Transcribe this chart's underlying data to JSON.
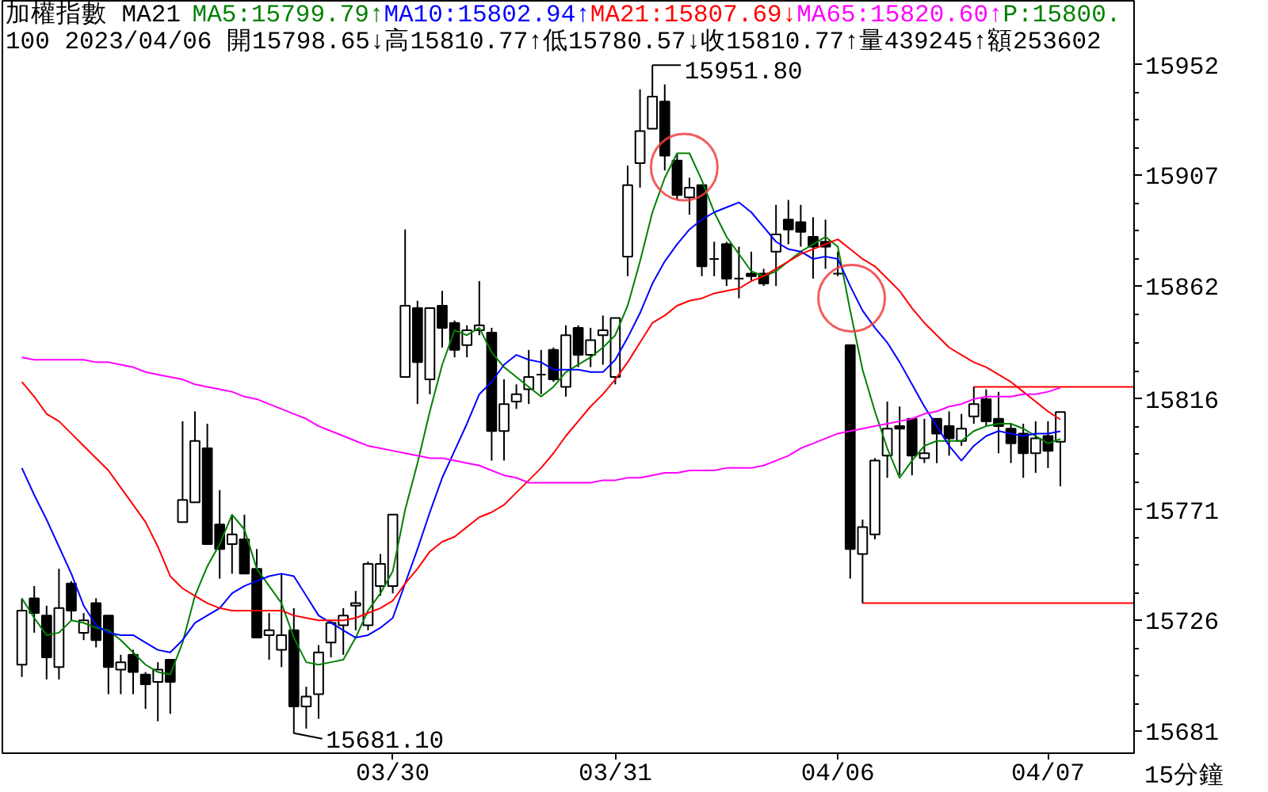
{
  "chart_data": {
    "type": "candlestick",
    "title": "加權指數 MA21",
    "subtitle": "100 2023/04/06 開15798.65↓高15810.77↑低15780.57↓收15810.77↑量439245↑額253602",
    "xlabel": "15分鐘",
    "categories": [
      null,
      null,
      null,
      null,
      null,
      null,
      null,
      null,
      null,
      null,
      null,
      null,
      null,
      null,
      null,
      null,
      null,
      null,
      null,
      null,
      null,
      null,
      null,
      null,
      null,
      null,
      null,
      null,
      null,
      null,
      "03/30",
      null,
      null,
      null,
      null,
      null,
      null,
      null,
      null,
      null,
      null,
      null,
      null,
      null,
      null,
      null,
      null,
      null,
      "03/31",
      null,
      null,
      null,
      null,
      null,
      null,
      null,
      null,
      null,
      null,
      null,
      null,
      null,
      null,
      null,
      null,
      null,
      "04/06",
      null,
      null,
      null,
      null,
      null,
      null,
      null,
      null,
      null,
      null,
      null,
      null,
      null,
      null,
      null,
      null,
      "04/07",
      null
    ],
    "ohlc": [
      [
        15708,
        15735,
        15703,
        15730
      ],
      [
        15735,
        15740,
        15721,
        15729
      ],
      [
        15728,
        15732,
        15702,
        15711
      ],
      [
        15707,
        15747,
        15702,
        15731
      ],
      [
        15741,
        15742,
        15726,
        15730
      ],
      [
        15721,
        15729,
        15718,
        15726
      ],
      [
        15733,
        15735,
        15715,
        15718
      ],
      [
        15728,
        15728,
        15696,
        15707
      ],
      [
        15706,
        15712,
        15696,
        15709
      ],
      [
        15712,
        15714,
        15696,
        15705
      ],
      [
        15704,
        15705,
        15690,
        15700
      ],
      [
        15701,
        15709,
        15685,
        15706
      ],
      [
        15710,
        15710,
        15688,
        15701
      ],
      [
        15766,
        15807,
        15766,
        15775
      ],
      [
        15774,
        15811,
        15774,
        15799
      ],
      [
        15796,
        15806,
        15757,
        15757
      ],
      [
        15765,
        15779,
        15743,
        15755
      ],
      [
        15757,
        15769,
        15745,
        15761
      ],
      [
        15759,
        15769,
        15745,
        15745
      ],
      [
        15747,
        15755,
        15719,
        15719
      ],
      [
        15720,
        15729,
        15710,
        15722
      ],
      [
        15714,
        15745,
        15707,
        15720
      ],
      [
        15722,
        15731,
        15681.1,
        15691
      ],
      [
        15691,
        15699,
        15682,
        15695
      ],
      [
        15696,
        15716,
        15686,
        15713
      ],
      [
        15717,
        15726,
        15711,
        15725
      ],
      [
        15724,
        15731,
        15712,
        15728
      ],
      [
        15732,
        15738,
        15722,
        15733
      ],
      [
        15724,
        15750,
        15722,
        15749
      ],
      [
        15740,
        15753,
        15736,
        15749
      ],
      [
        15740,
        15769,
        15737,
        15769
      ],
      [
        15825,
        15885,
        15825,
        15854
      ],
      [
        15853,
        15856,
        15814,
        15831
      ],
      [
        15824,
        15853,
        15818,
        15853
      ],
      [
        15854,
        15860,
        15837,
        15845
      ],
      [
        15847,
        15848,
        15833,
        15836
      ],
      [
        15838,
        15846,
        15833,
        15844
      ],
      [
        15844,
        15864,
        15842,
        15846
      ],
      [
        15843,
        15845,
        15791,
        15803
      ],
      [
        15803,
        15824,
        15791,
        15814
      ],
      [
        15815,
        15822,
        15812,
        15818
      ],
      [
        15820,
        15836,
        15814,
        15825
      ],
      [
        15826,
        15836,
        15818,
        15826
      ],
      [
        15836,
        15837,
        15823,
        15824
      ],
      [
        15821,
        15846,
        15817,
        15842
      ],
      [
        15845,
        15846,
        15829,
        15834
      ],
      [
        15834,
        15845,
        15829,
        15840
      ],
      [
        15842,
        15850,
        15830,
        15844
      ],
      [
        15825,
        15849,
        15822,
        15849
      ],
      [
        15874,
        15911,
        15866,
        15903
      ],
      [
        15912,
        15942,
        15902,
        15925
      ],
      [
        15926,
        15951.8,
        15926,
        15939
      ],
      [
        15937,
        15944,
        15909,
        15915
      ],
      [
        15913,
        15916,
        15897,
        15899
      ],
      [
        15898,
        15906,
        15891,
        15902
      ],
      [
        15903,
        15903,
        15866,
        15870
      ],
      [
        15873,
        15880,
        15866,
        15873
      ],
      [
        15879,
        15880,
        15862,
        15865
      ],
      [
        15865,
        15878,
        15857,
        15865
      ],
      [
        15867,
        15876,
        15864,
        15866
      ],
      [
        15867,
        15869,
        15862,
        15863
      ],
      [
        15876,
        15895,
        15862,
        15883
      ],
      [
        15889,
        15897,
        15879,
        15885
      ],
      [
        15888,
        15895,
        15878,
        15884
      ],
      [
        15882,
        15890,
        15865,
        15878
      ],
      [
        15880,
        15889,
        15869,
        15878
      ],
      [
        15867,
        15876,
        15866,
        15867
      ],
      [
        15838,
        15838,
        15743,
        15755
      ],
      [
        15753,
        15767,
        15733,
        15764
      ],
      [
        15761,
        15792,
        15759,
        15791
      ],
      [
        15793,
        15815,
        15784,
        15804
      ],
      [
        15805,
        15813,
        15785,
        15804
      ],
      [
        15808,
        15808,
        15785,
        15793
      ],
      [
        15792,
        15808,
        15790,
        15794
      ],
      [
        15808,
        15808,
        15790,
        15802
      ],
      [
        15805,
        15811,
        15793,
        15800
      ],
      [
        15799,
        15810,
        15797,
        15804
      ],
      [
        15809,
        15821,
        15806,
        15814
      ],
      [
        15816,
        15820,
        15805,
        15807
      ],
      [
        15808,
        15819,
        15794,
        15805
      ],
      [
        15804,
        15806,
        15790,
        15798
      ],
      [
        15802,
        15806,
        15784,
        15794
      ],
      [
        15794,
        15807,
        15786,
        15800
      ],
      [
        15801,
        15807,
        15788,
        15795
      ],
      [
        15798.65,
        15810.77,
        15780.57,
        15810.77
      ]
    ],
    "series": [
      {
        "name": "MA5:15799.79↑",
        "type": "line",
        "color": "#008000",
        "values": [
          15735,
          15727,
          15720,
          15721,
          15726,
          15725,
          15723,
          15722,
          15718,
          15713,
          15708,
          15705,
          15704,
          15717,
          15736,
          15748,
          15757,
          15769,
          15763,
          15747,
          15740,
          15733,
          15719,
          15709,
          15708,
          15709,
          15710,
          15719,
          15730,
          15737,
          15746,
          15771,
          15790,
          15811,
          15830,
          15844,
          15842,
          15845,
          15835,
          15829,
          15825,
          15821,
          15817,
          15821,
          15827,
          15830,
          15833,
          15837,
          15842,
          15854,
          15872,
          15892,
          15906,
          15916,
          15916,
          15905,
          15892,
          15882,
          15875,
          15868,
          15866,
          15868,
          15872,
          15876,
          15879,
          15882,
          15878,
          15852,
          15828,
          15811,
          15796,
          15784,
          15791,
          15797,
          15799,
          15799,
          15799,
          15803,
          15805,
          15806,
          15806,
          15804,
          15801,
          15798,
          15799.79
        ]
      },
      {
        "name": "MA10:15802.94↑",
        "type": "line",
        "color": "#0000ff",
        "values": [
          15788,
          15777,
          15767,
          15756,
          15745,
          15732,
          15724,
          15721,
          15720,
          15720,
          15717,
          15714,
          15713,
          15718,
          15725,
          15728,
          15731,
          15737,
          15740,
          15742,
          15744,
          15745,
          15744,
          15736,
          15728,
          15725,
          15722,
          15719,
          15720,
          15723,
          15727,
          15741,
          15755,
          15770,
          15784,
          15795,
          15806,
          15818,
          15823,
          15830,
          15834,
          15832,
          15831,
          15828,
          15828,
          15828,
          15827,
          15827,
          15832,
          15841,
          15851,
          15863,
          15872,
          15879,
          15885,
          15889,
          15892,
          15894,
          15896,
          15892,
          15886,
          15880,
          15877,
          15876,
          15873,
          15874,
          15873,
          15862,
          15852,
          15845,
          15839,
          15831,
          15822,
          15813,
          15805,
          15797,
          15791,
          15797,
          15801,
          15803,
          15802,
          15801,
          15802,
          15802,
          15802.94
        ]
      },
      {
        "name": "MA21:15807.69↓",
        "type": "line",
        "color": "#ff0000",
        "values": [
          15823,
          15817,
          15810,
          15807,
          15802,
          15797,
          15792,
          15787,
          15780,
          15773,
          15766,
          15756,
          15744,
          15739,
          15736,
          15733,
          15731,
          15730,
          15730,
          15730,
          15730,
          15730,
          15728,
          15727,
          15726,
          15726,
          15726,
          15727,
          15729,
          15731,
          15734,
          15741,
          15747,
          15754,
          15758,
          15760,
          15764,
          15768,
          15770,
          15773,
          15778,
          15783,
          15788,
          15794,
          15801,
          15807,
          15813,
          15818,
          15824,
          15831,
          15839,
          15847,
          15850,
          15854,
          15856,
          15857,
          15859,
          15860,
          15861,
          15864,
          15866,
          15869,
          15872,
          15875,
          15877,
          15879,
          15881,
          15877,
          15873,
          15870,
          15865,
          15860,
          15853,
          15847,
          15842,
          15837,
          15834,
          15831,
          15829,
          15826,
          15823,
          15819,
          15815,
          15811,
          15807.69
        ]
      },
      {
        "name": "MA65:15820.60↑",
        "type": "line",
        "color": "#ff00ff",
        "values": [
          15833,
          15832,
          15832,
          15832,
          15832,
          15832,
          15831,
          15831,
          15830,
          15829,
          15827,
          15826,
          15825,
          15824,
          15822,
          15821,
          15820,
          15819,
          15817,
          15816,
          15814,
          15812,
          15810,
          15808,
          15805,
          15803,
          15801,
          15799,
          15797,
          15796,
          15795,
          15794,
          15793,
          15792,
          15792,
          15791,
          15790,
          15789,
          15787,
          15785,
          15784,
          15782,
          15782,
          15782,
          15782,
          15782,
          15782,
          15783,
          15783,
          15784,
          15784,
          15785,
          15786,
          15786,
          15787,
          15787,
          15787,
          15788,
          15788,
          15788,
          15789,
          15791,
          15793,
          15796,
          15798,
          15800,
          15802,
          15803,
          15804,
          15805,
          15806,
          15807,
          15808,
          15810,
          15811,
          15813,
          15814,
          15816,
          15817,
          15817,
          15817,
          15818,
          15818,
          15819,
          15820.6
        ]
      }
    ],
    "ylim": [
      15672,
      15978
    ],
    "yticks": [
      15681,
      15726,
      15771,
      15816,
      15862,
      15907,
      15952
    ],
    "ref_lines": [
      {
        "axis": "y",
        "value": 15821,
        "color": "#ff0000"
      },
      {
        "axis": "y",
        "value": 15733,
        "color": "#ff0000"
      }
    ],
    "annotations": [
      "P:15800.",
      "15951.80",
      "15681.10"
    ],
    "legend": "top"
  }
}
